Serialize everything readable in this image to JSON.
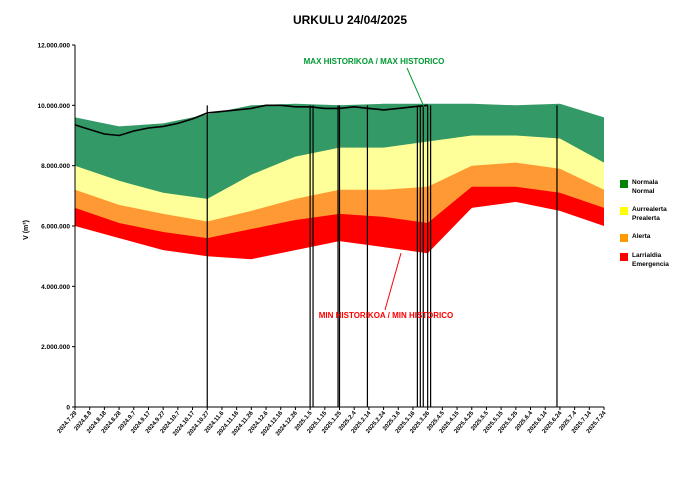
{
  "chart_data": {
    "type": "area",
    "title": "URKULU 24/04/2025",
    "ylabel": "V (m³)",
    "xlabel": "",
    "ylim": [
      0,
      12000000
    ],
    "y_ticks": [
      "0",
      "2.000.000",
      "4.000.000",
      "6.000.000",
      "8.000.000",
      "10.000.000",
      "12.000.000"
    ],
    "y_tick_values": [
      0,
      2000000,
      4000000,
      6000000,
      8000000,
      10000000,
      12000000
    ],
    "x_tick_labels": [
      "2024.7.29",
      "2024.8.8",
      "2024.8.18",
      "2024.8.28",
      "2024.9.7",
      "2024.9.17",
      "2024.9.27",
      "2024.10.7",
      "2024.10.17",
      "2024.10.27",
      "2024.11.6",
      "2024.11.16",
      "2024.11.26",
      "2024.12.6",
      "2024.12.16",
      "2024.12.26",
      "2025.1.5",
      "2025.1.15",
      "2025.1.25",
      "2025.2.4",
      "2025.2.14",
      "2025.2.24",
      "2025.3.6",
      "2025.3.16",
      "2025.3.26",
      "2025.4.5",
      "2025.4.15",
      "2025.4.25",
      "2025.5.5",
      "2025.5.15",
      "2025.5.25",
      "2025.6.4",
      "2025.6.14",
      "2025.6.24",
      "2025.7.4",
      "2025.7.14",
      "2025.7.24"
    ],
    "x": [
      "2024.7.29",
      "2024.8.28",
      "2024.9.27",
      "2024.10.27",
      "2024.11.26",
      "2024.12.26",
      "2025.1.25",
      "2025.2.24",
      "2025.3.26",
      "2025.4.25",
      "2025.5.25",
      "2025.6.24",
      "2025.7.24"
    ],
    "series": [
      {
        "name": "Normala Normal",
        "color": "#339966",
        "values": [
          9600000,
          9300000,
          9400000,
          9700000,
          10000000,
          10050000,
          10000000,
          10050000,
          10050000,
          10050000,
          10000000,
          10050000,
          9600000
        ]
      },
      {
        "name": "Aurrealerta Prealerta",
        "color": "#ffff99",
        "values": [
          8000000,
          7500000,
          7100000,
          6900000,
          7700000,
          8300000,
          8600000,
          8600000,
          8800000,
          9000000,
          9000000,
          8900000,
          8100000
        ]
      },
      {
        "name": "Alerta",
        "color": "#ff9933",
        "values": [
          7200000,
          6700000,
          6400000,
          6150000,
          6500000,
          6900000,
          7200000,
          7200000,
          7300000,
          8000000,
          8100000,
          7900000,
          7200000
        ]
      },
      {
        "name": "Larrialdia Emergencia",
        "color": "#ff0000",
        "values": [
          6600000,
          6100000,
          5800000,
          5600000,
          5900000,
          6200000,
          6400000,
          6300000,
          6100000,
          7300000,
          7300000,
          7100000,
          6600000
        ]
      },
      {
        "name": "MIN HISTORIKOA / MIN HISTORICO",
        "color": "#ffffff",
        "values": [
          6000000,
          5600000,
          5200000,
          5000000,
          4900000,
          5200000,
          5500000,
          5300000,
          5100000,
          6600000,
          6800000,
          6500000,
          6000000
        ]
      }
    ],
    "volume_line": {
      "color": "#000000",
      "x": [
        "2024.7.29",
        "2024.8.8",
        "2024.8.18",
        "2024.8.28",
        "2024.9.7",
        "2024.9.17",
        "2024.9.27",
        "2024.10.7",
        "2024.10.17",
        "2024.10.27",
        "2024.11.6",
        "2024.11.16",
        "2024.11.26",
        "2024.12.6",
        "2024.12.16",
        "2024.12.26",
        "2025.1.5",
        "2025.1.15",
        "2025.1.25",
        "2025.2.4",
        "2025.2.14",
        "2025.2.24",
        "2025.3.6",
        "2025.3.16",
        "2025.3.26"
      ],
      "values": [
        9350000,
        9200000,
        9050000,
        9000000,
        9150000,
        9250000,
        9300000,
        9400000,
        9550000,
        9750000,
        9800000,
        9850000,
        9900000,
        10000000,
        10000000,
        9950000,
        9950000,
        9900000,
        9900000,
        9950000,
        9900000,
        9850000,
        9900000,
        9950000,
        10000000
      ]
    },
    "drops": [
      "2024.10.27",
      "2025.1.5",
      "2025.1.7",
      "2025.1.24",
      "2025.1.25",
      "2025.2.13",
      "2025.3.19",
      "2025.3.21",
      "2025.3.23",
      "2025.3.26",
      "2025.3.28",
      "2025.6.22"
    ],
    "grid": false,
    "legend_position": "right",
    "annotations": [
      "MAX HISTORIKOA / MAX HISTORICO",
      "MIN HISTORIKOA / MIN HISTORICO"
    ],
    "annotation_colors": [
      "#009933",
      "#ff0000"
    ]
  },
  "legend": {
    "items": [
      {
        "line1": "Normala",
        "line2": "Normal",
        "color": "#008000"
      },
      {
        "line1": "Aurrealerta",
        "line2": "Prealerta",
        "color": "#ffff00"
      },
      {
        "line1": "Alerta",
        "line2": "",
        "color": "#ff9900"
      },
      {
        "line1": "Larrialdia",
        "line2": "Emergencia",
        "color": "#ff0000"
      }
    ]
  }
}
